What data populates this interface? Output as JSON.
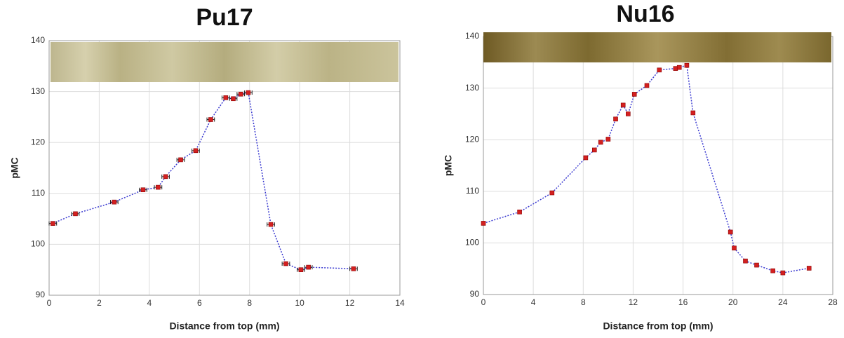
{
  "chart_data": [
    {
      "type": "line",
      "title": "Pu17",
      "x_label": "Distance from top (mm)",
      "y_label": "pMC",
      "x": [
        0.15,
        1.05,
        2.6,
        3.75,
        4.35,
        4.65,
        5.25,
        5.85,
        6.45,
        7.05,
        7.35,
        7.65,
        7.95,
        8.85,
        9.45,
        10.05,
        10.35,
        12.15
      ],
      "values": [
        104.1,
        106,
        108.3,
        110.7,
        111.2,
        113.3,
        116.6,
        118.4,
        124.5,
        128.8,
        128.6,
        129.5,
        129.8,
        103.9,
        96.2,
        95,
        95.5,
        95.2
      ],
      "x_errors": [
        0.15,
        0.15,
        0.15,
        0.15,
        0.15,
        0.15,
        0.15,
        0.15,
        0.15,
        0.15,
        0.15,
        0.15,
        0.15,
        0.15,
        0.15,
        0.15,
        0.15,
        0.15
      ],
      "xlim": [
        0,
        14
      ],
      "ylim": [
        90,
        140
      ],
      "xticks": [
        0,
        2,
        4,
        6,
        8,
        10,
        12,
        14
      ],
      "yticks": [
        90,
        100,
        110,
        120,
        130,
        140
      ],
      "grid": true,
      "marker_color": "#d42020",
      "line_color": "#3a3ad0"
    },
    {
      "type": "line",
      "title": "Nu16",
      "x_label": "Distance from top (mm)",
      "y_label": "pMC",
      "x": [
        0,
        2.9,
        5.5,
        8.2,
        8.9,
        9.4,
        10,
        10.6,
        11.2,
        11.6,
        12.1,
        13.1,
        14.1,
        15.4,
        15.7,
        16.3,
        16.8,
        19.8,
        20.1,
        21,
        21.9,
        23.2,
        24,
        26.1
      ],
      "values": [
        103.8,
        106,
        109.7,
        116.5,
        118,
        119.5,
        120.1,
        124,
        126.7,
        125,
        128.8,
        130.5,
        133.5,
        133.8,
        134,
        134.4,
        125.2,
        102.1,
        99,
        96.5,
        95.7,
        94.6,
        94.2,
        95.1
      ],
      "xlim": [
        0,
        28
      ],
      "ylim": [
        90,
        140
      ],
      "xticks": [
        0,
        4,
        8,
        12,
        16,
        20,
        24,
        28
      ],
      "yticks": [
        90,
        100,
        110,
        120,
        130,
        140
      ],
      "grid": true,
      "marker_color": "#d42020",
      "line_color": "#3a3ad0"
    }
  ]
}
